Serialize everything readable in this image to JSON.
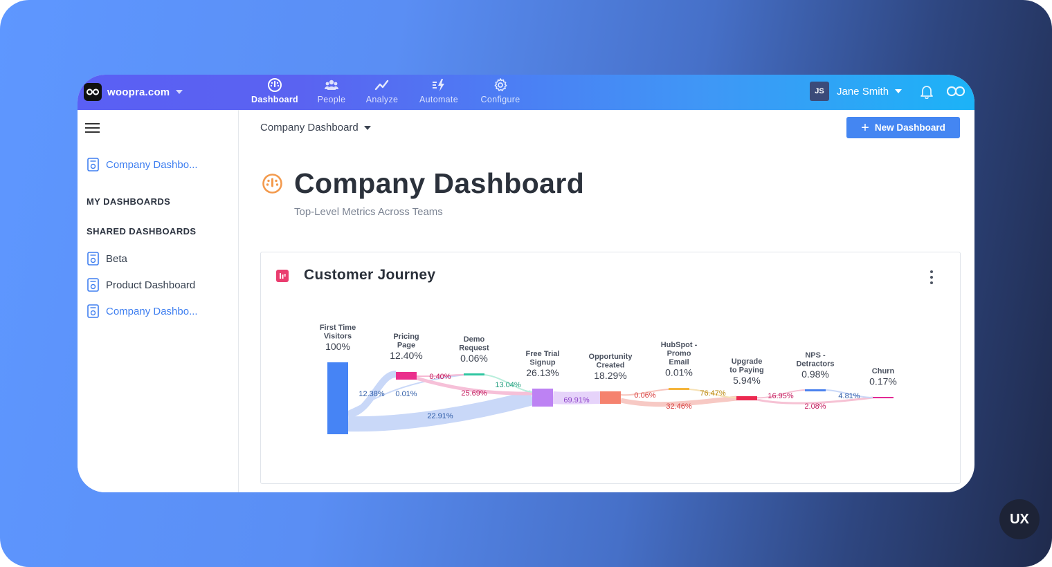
{
  "app": {
    "workspace": "woopra.com",
    "nav": [
      {
        "label": "Dashboard",
        "icon": "dashboard-gauge-icon",
        "active": true
      },
      {
        "label": "People",
        "icon": "people-icon",
        "active": false
      },
      {
        "label": "Analyze",
        "icon": "analyze-trend-icon",
        "active": false
      },
      {
        "label": "Automate",
        "icon": "automate-bolt-icon",
        "active": false
      },
      {
        "label": "Configure",
        "icon": "gear-icon",
        "active": false
      }
    ],
    "user": {
      "initials": "JS",
      "name": "Jane Smith"
    }
  },
  "sidebar": {
    "pinned": {
      "label": "Company Dashbo..."
    },
    "my_dashboards_heading": "MY DASHBOARDS",
    "shared_dashboards_heading": "SHARED DASHBOARDS",
    "shared": [
      {
        "label": "Beta",
        "active": false
      },
      {
        "label": "Product Dashboard",
        "active": false
      },
      {
        "label": "Company Dashbo...",
        "active": true
      }
    ]
  },
  "main": {
    "breadcrumb": "Company Dashboard",
    "new_button": "New Dashboard",
    "title": "Company Dashboard",
    "subtitle": "Top-Level Metrics Across Teams",
    "card_title": "Customer Journey"
  },
  "badge": "UX",
  "chart_data": {
    "type": "sankey",
    "title": "Customer Journey",
    "nodes": [
      {
        "name": "First Time Visitors",
        "value": "100%",
        "color": "#4684f5"
      },
      {
        "name": "Pricing Page",
        "value": "12.40%",
        "color": "#ea2f8c"
      },
      {
        "name": "Demo Request",
        "value": "0.06%",
        "color": "#2ec5a0"
      },
      {
        "name": "Free Trial Signup",
        "value": "26.13%",
        "color": "#bd82f3"
      },
      {
        "name": "Opportunity Created",
        "value": "18.29%",
        "color": "#f5826e"
      },
      {
        "name": "HubSpot - Promo Email",
        "value": "0.01%",
        "color": "#f5b53c"
      },
      {
        "name": "Upgrade to Paying",
        "value": "5.94%",
        "color": "#ec2950"
      },
      {
        "name": "NPS - Detractors",
        "value": "0.98%",
        "color": "#4a82ee"
      },
      {
        "name": "Churn",
        "value": "0.17%",
        "color": "#e22a94"
      }
    ],
    "links": [
      {
        "source": "First Time Visitors",
        "target": "Pricing Page",
        "value": "12.38%",
        "color": "#2c5aa6"
      },
      {
        "source": "First Time Visitors",
        "target": "Demo Request",
        "value": "0.01%",
        "color": "#2c5aa6"
      },
      {
        "source": "First Time Visitors",
        "target": "Free Trial Signup",
        "value": "22.91%",
        "color": "#2c5aa6"
      },
      {
        "source": "Pricing Page",
        "target": "Demo Request",
        "value": "0.40%",
        "color": "#c2185b"
      },
      {
        "source": "Pricing Page",
        "target": "Free Trial Signup",
        "value": "25.69%",
        "color": "#c2185b"
      },
      {
        "source": "Demo Request",
        "target": "Free Trial Signup",
        "value": "13.04%",
        "color": "#1e9c7c"
      },
      {
        "source": "Free Trial Signup",
        "target": "Opportunity Created",
        "value": "69.91%",
        "color": "#8e44c9"
      },
      {
        "source": "Opportunity Created",
        "target": "HubSpot - Promo Email",
        "value": "0.06%",
        "color": "#d73a3a"
      },
      {
        "source": "Opportunity Created",
        "target": "Upgrade to Paying",
        "value": "32.46%",
        "color": "#d73a3a"
      },
      {
        "source": "HubSpot - Promo Email",
        "target": "Upgrade to Paying",
        "value": "76.47%",
        "color": "#b8860b"
      },
      {
        "source": "Upgrade to Paying",
        "target": "NPS - Detractors",
        "value": "16.95%",
        "color": "#c2185b"
      },
      {
        "source": "Upgrade to Paying",
        "target": "Churn",
        "value": "2.08%",
        "color": "#c2185b"
      },
      {
        "source": "NPS - Detractors",
        "target": "Churn",
        "value": "4.81%",
        "color": "#2c5aa6"
      }
    ]
  }
}
